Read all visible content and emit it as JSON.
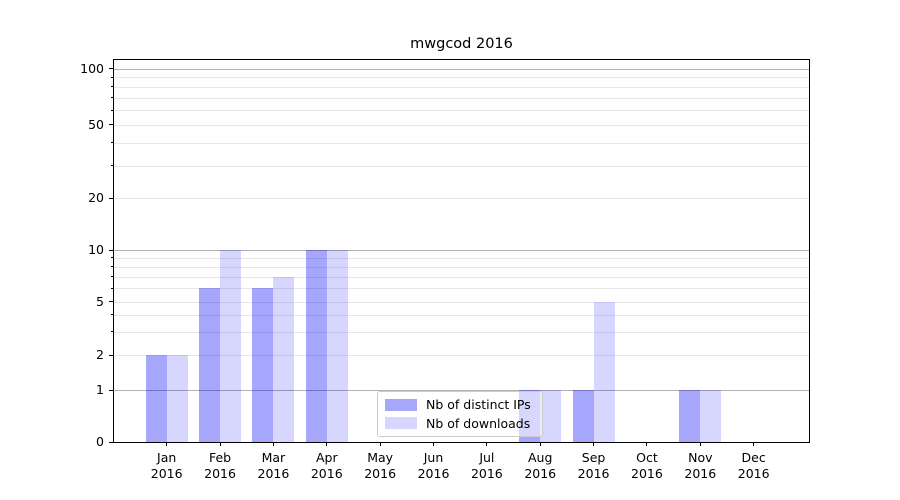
{
  "title": "mwgcod 2016",
  "legend": {
    "items": [
      {
        "label": "Nb of distinct IPs"
      },
      {
        "label": "Nb of downloads"
      }
    ]
  },
  "colors": {
    "bar_distinct_ips": "rgba(0,0,250,0.35)",
    "bar_downloads": "rgba(0,0,250,0.16)",
    "grid_major": "#b1b1b1",
    "grid_minor": "#e7e7e7",
    "axis": "#000000",
    "legend_border": "#cccccc",
    "legend_bg": "rgba(255,255,255,0.55)"
  },
  "y_axis": {
    "tick_labels": [
      "0",
      "1",
      "2",
      "5",
      "10",
      "20",
      "50",
      "100"
    ]
  },
  "x_axis": {
    "months": [
      "Jan",
      "Feb",
      "Mar",
      "Apr",
      "May",
      "Jun",
      "Jul",
      "Aug",
      "Sep",
      "Oct",
      "Nov",
      "Dec"
    ],
    "year": "2016"
  },
  "chart_data": {
    "type": "bar",
    "title": "mwgcod 2016",
    "categories": [
      "Jan 2016",
      "Feb 2016",
      "Mar 2016",
      "Apr 2016",
      "May 2016",
      "Jun 2016",
      "Jul 2016",
      "Aug 2016",
      "Sep 2016",
      "Oct 2016",
      "Nov 2016",
      "Dec 2016"
    ],
    "series": [
      {
        "name": "Nb of distinct IPs",
        "values": [
          2,
          6,
          6,
          10,
          0,
          0,
          0,
          1,
          1,
          0,
          1,
          0
        ]
      },
      {
        "name": "Nb of downloads",
        "values": [
          2,
          10,
          7,
          10,
          0,
          0,
          0,
          1,
          5,
          0,
          1,
          0
        ]
      }
    ],
    "xlabel": "",
    "ylabel": "",
    "y_ticks": [
      0,
      1,
      2,
      5,
      10,
      20,
      50,
      100
    ],
    "y_minor_ticks": [
      3,
      4,
      6,
      7,
      8,
      9,
      30,
      40,
      60,
      70,
      80,
      90
    ],
    "y_scale": "quasi-log",
    "ylim": [
      0,
      115
    ],
    "grid": "horizontal major+minor",
    "legend_position": "inside lower-center"
  }
}
